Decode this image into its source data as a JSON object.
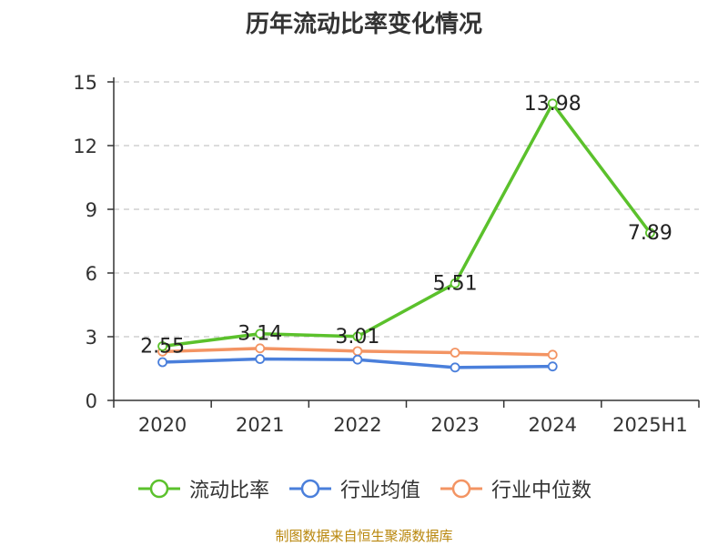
{
  "chart_data": {
    "type": "line",
    "title": "历年流动比率变化情况",
    "categories": [
      "2020",
      "2021",
      "2022",
      "2023",
      "2024",
      "2025H1"
    ],
    "y_ticks": [
      "0",
      "3",
      "6",
      "9",
      "12",
      "15"
    ],
    "ylim": [
      0,
      15
    ],
    "grid": true,
    "legend_position": "bottom",
    "series": [
      {
        "name": "流动比率",
        "color": "#5bc12c",
        "values": [
          2.55,
          3.14,
          3.01,
          5.51,
          13.98,
          7.89
        ],
        "labels": [
          "2.55",
          "3.14",
          "3.01",
          "5.51",
          "13.98",
          "7.89"
        ]
      },
      {
        "name": "行业均值",
        "color": "#4a7fdb",
        "values": [
          1.8,
          1.95,
          1.92,
          1.55,
          1.6,
          null
        ]
      },
      {
        "name": "行业中位数",
        "color": "#f39463",
        "values": [
          2.3,
          2.45,
          2.32,
          2.25,
          2.15,
          null
        ]
      }
    ]
  },
  "source_note": "制图数据来自恒生聚源数据库"
}
